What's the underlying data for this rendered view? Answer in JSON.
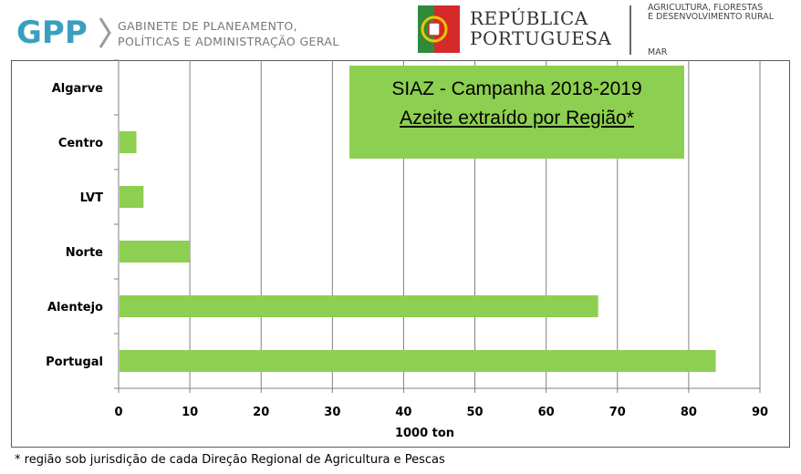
{
  "header": {
    "gpp_logo": "GPP",
    "gpp_name_line1": "GABINETE DE PLANEAMENTO,",
    "gpp_name_line2": "POLÍTICAS E ADMINISTRAÇÃO GERAL",
    "rp_line1": "REPÚBLICA",
    "rp_line2": "PORTUGUESA",
    "ministry_line1": "AGRICULTURA, FLORESTAS",
    "ministry_line2": "E DESENVOLVIMENTO RURAL",
    "ministry_sub": "MAR"
  },
  "footnote": "* região sob jurisdição de cada Direção Regional de Agricultura e Pescas",
  "chart_data": {
    "type": "bar",
    "orientation": "horizontal",
    "title_line1": "SIAZ - Campanha 2018-2019",
    "title_line2": "Azeite extraído por Região*",
    "xlabel": "1000 ton",
    "ylabel": "",
    "xlim": [
      0,
      90
    ],
    "xticks": [
      0,
      10,
      20,
      30,
      40,
      50,
      60,
      70,
      80,
      90
    ],
    "grid": "vertical",
    "legend": "none",
    "bar_color": "#8dcf50",
    "categories": [
      "Algarve",
      "Centro",
      "LVT",
      "Norte",
      "Alentejo",
      "Portugal"
    ],
    "values": [
      0,
      2.5,
      3.5,
      10,
      67.3,
      83.8
    ]
  }
}
